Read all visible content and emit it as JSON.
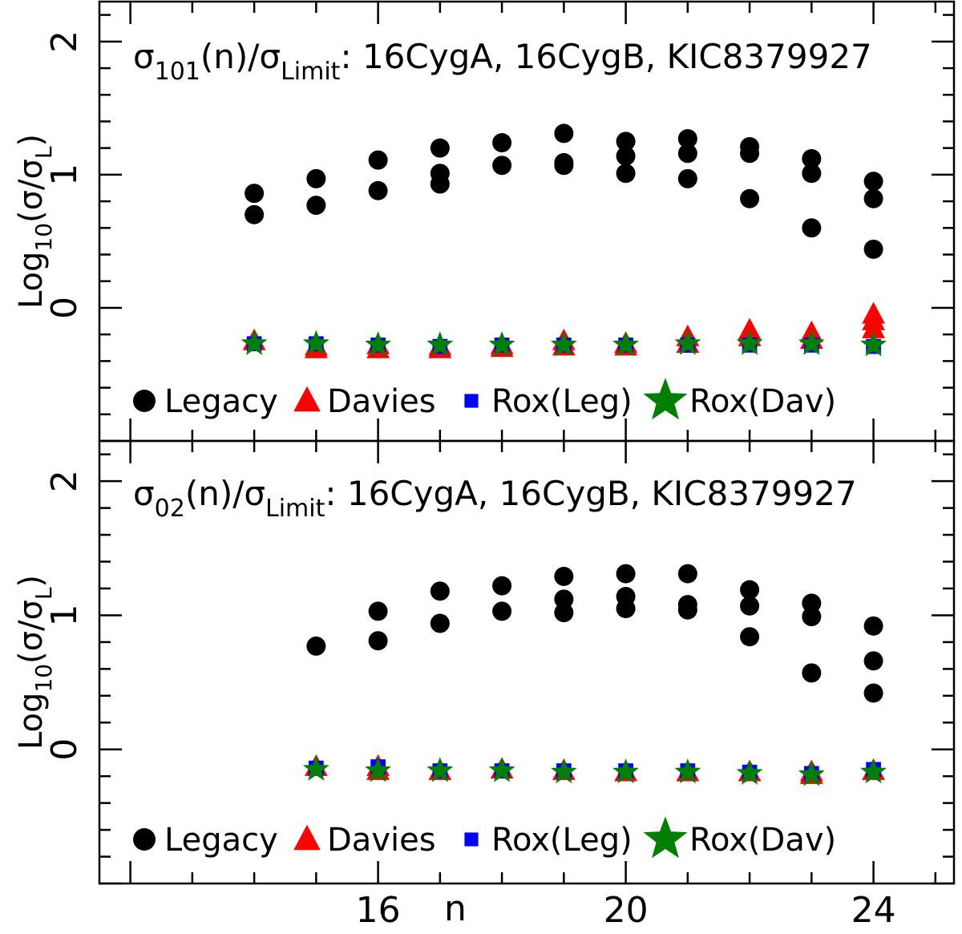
{
  "chart_data": [
    {
      "type": "scatter",
      "panel": "top",
      "title": {
        "prefix": "σ",
        "subscript": "101",
        "mid": "(n)/σ",
        "subscript2": "Limit",
        "suffix": ": 16CygA, 16CygB, KIC8379927"
      },
      "ylabel": {
        "prefix": "Log",
        "subscript": "10",
        "mid": "(σ/σ",
        "subscript2": "L",
        "suffix": ")"
      },
      "xlim": [
        11.5,
        25.3
      ],
      "ylim": [
        -1.0,
        2.3
      ],
      "yticks": [
        0,
        1,
        2
      ],
      "ytick_labels": [
        "0",
        "1",
        "2"
      ],
      "legend_position": "bottom",
      "series": [
        {
          "name": "Legacy",
          "marker": "circle",
          "color": "#000000",
          "points": [
            [
              14,
              0.86
            ],
            [
              14,
              0.7
            ],
            [
              15,
              0.97
            ],
            [
              15,
              0.77
            ],
            [
              16,
              1.11
            ],
            [
              16,
              0.88
            ],
            [
              17,
              1.2
            ],
            [
              17,
              1.01
            ],
            [
              17,
              0.93
            ],
            [
              18,
              1.24
            ],
            [
              18,
              1.07
            ],
            [
              19,
              1.31
            ],
            [
              19,
              1.09
            ],
            [
              19,
              1.07
            ],
            [
              20,
              1.25
            ],
            [
              20,
              1.14
            ],
            [
              20,
              1.01
            ],
            [
              21,
              1.27
            ],
            [
              21,
              1.16
            ],
            [
              21,
              0.97
            ],
            [
              22,
              1.21
            ],
            [
              22,
              1.16
            ],
            [
              22,
              0.82
            ],
            [
              23,
              1.12
            ],
            [
              23,
              1.01
            ],
            [
              23,
              0.6
            ],
            [
              24,
              0.95
            ],
            [
              24,
              0.82
            ],
            [
              24,
              0.44
            ]
          ]
        },
        {
          "name": "Davies",
          "marker": "triangle",
          "color": "#ff0000",
          "points": [
            [
              14,
              -0.25
            ],
            [
              15,
              -0.29
            ],
            [
              15,
              -0.31
            ],
            [
              16,
              -0.28
            ],
            [
              16,
              -0.31
            ],
            [
              17,
              -0.29
            ],
            [
              17,
              -0.31
            ],
            [
              18,
              -0.28
            ],
            [
              18,
              -0.3
            ],
            [
              19,
              -0.25
            ],
            [
              19,
              -0.29
            ],
            [
              20,
              -0.27
            ],
            [
              20,
              -0.29
            ],
            [
              21,
              -0.22
            ],
            [
              21,
              -0.27
            ],
            [
              22,
              -0.17
            ],
            [
              22,
              -0.22
            ],
            [
              23,
              -0.19
            ],
            [
              23,
              -0.24
            ],
            [
              24,
              -0.05
            ],
            [
              24,
              -0.1
            ],
            [
              24,
              -0.16
            ]
          ]
        },
        {
          "name": "Rox(Leg)",
          "marker": "square",
          "color": "#0000ff",
          "points": [
            [
              14,
              -0.27
            ],
            [
              15,
              -0.27
            ],
            [
              16,
              -0.28
            ],
            [
              17,
              -0.29
            ],
            [
              18,
              -0.28
            ],
            [
              19,
              -0.28
            ],
            [
              20,
              -0.28
            ],
            [
              21,
              -0.28
            ],
            [
              22,
              -0.28
            ],
            [
              23,
              -0.28
            ],
            [
              24,
              -0.29
            ]
          ]
        },
        {
          "name": "Rox(Dav)",
          "marker": "star",
          "color": "#008000",
          "points": [
            [
              14,
              -0.27
            ],
            [
              15,
              -0.27
            ],
            [
              16,
              -0.28
            ],
            [
              17,
              -0.28
            ],
            [
              18,
              -0.28
            ],
            [
              19,
              -0.28
            ],
            [
              20,
              -0.28
            ],
            [
              21,
              -0.27
            ],
            [
              22,
              -0.27
            ],
            [
              23,
              -0.27
            ],
            [
              24,
              -0.28
            ]
          ]
        }
      ]
    },
    {
      "type": "scatter",
      "panel": "bottom",
      "title": {
        "prefix": "σ",
        "subscript": "02",
        "mid": "(n)/σ",
        "subscript2": "Limit",
        "suffix": ": 16CygA, 16CygB, KIC8379927"
      },
      "ylabel": {
        "prefix": "Log",
        "subscript": "10",
        "mid": "(σ/σ",
        "subscript2": "L",
        "suffix": ")"
      },
      "xlabel": "n",
      "xlim": [
        11.5,
        25.3
      ],
      "ylim": [
        -1.0,
        2.3
      ],
      "xticks": [
        16,
        20,
        24
      ],
      "xtick_labels": [
        "16",
        "20",
        "24"
      ],
      "yticks": [
        0,
        1,
        2
      ],
      "ytick_labels": [
        "0",
        "1",
        "2"
      ],
      "legend_position": "bottom",
      "series": [
        {
          "name": "Legacy",
          "marker": "circle",
          "color": "#000000",
          "points": [
            [
              15,
              0.77
            ],
            [
              16,
              1.03
            ],
            [
              16,
              0.81
            ],
            [
              17,
              1.18
            ],
            [
              17,
              0.94
            ],
            [
              18,
              1.22
            ],
            [
              18,
              1.03
            ],
            [
              19,
              1.29
            ],
            [
              19,
              1.12
            ],
            [
              19,
              1.02
            ],
            [
              20,
              1.31
            ],
            [
              20,
              1.14
            ],
            [
              20,
              1.05
            ],
            [
              21,
              1.31
            ],
            [
              21,
              1.08
            ],
            [
              21,
              1.04
            ],
            [
              22,
              1.19
            ],
            [
              22,
              1.07
            ],
            [
              22,
              0.84
            ],
            [
              23,
              1.09
            ],
            [
              23,
              0.99
            ],
            [
              23,
              0.57
            ],
            [
              24,
              0.92
            ],
            [
              24,
              0.66
            ],
            [
              24,
              0.42
            ]
          ]
        },
        {
          "name": "Davies",
          "marker": "triangle",
          "color": "#ff0000",
          "points": [
            [
              15,
              -0.13
            ],
            [
              16,
              -0.13
            ],
            [
              16,
              -0.16
            ],
            [
              17,
              -0.16
            ],
            [
              18,
              -0.15
            ],
            [
              19,
              -0.16
            ],
            [
              20,
              -0.17
            ],
            [
              21,
              -0.17
            ],
            [
              22,
              -0.17
            ],
            [
              23,
              -0.17
            ],
            [
              23,
              -0.19
            ],
            [
              24,
              -0.16
            ]
          ]
        },
        {
          "name": "Rox(Leg)",
          "marker": "square",
          "color": "#0000ff",
          "points": [
            [
              15,
              -0.14
            ],
            [
              16,
              -0.13
            ],
            [
              17,
              -0.16
            ],
            [
              18,
              -0.16
            ],
            [
              19,
              -0.16
            ],
            [
              20,
              -0.16
            ],
            [
              21,
              -0.16
            ],
            [
              22,
              -0.17
            ],
            [
              23,
              -0.18
            ],
            [
              24,
              -0.15
            ]
          ]
        },
        {
          "name": "Rox(Dav)",
          "marker": "star",
          "color": "#008000",
          "points": [
            [
              15,
              -0.15
            ],
            [
              16,
              -0.16
            ],
            [
              17,
              -0.16
            ],
            [
              18,
              -0.16
            ],
            [
              19,
              -0.17
            ],
            [
              20,
              -0.17
            ],
            [
              21,
              -0.17
            ],
            [
              22,
              -0.18
            ],
            [
              23,
              -0.19
            ],
            [
              24,
              -0.17
            ]
          ]
        }
      ]
    }
  ]
}
